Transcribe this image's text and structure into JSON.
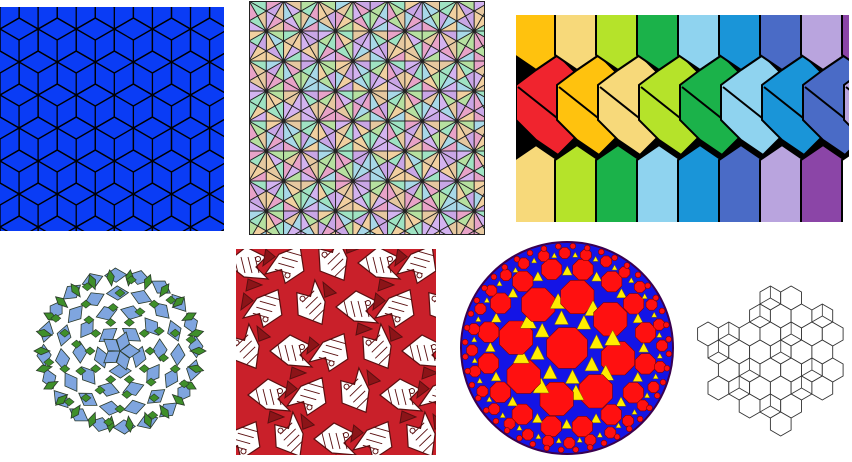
{
  "panels": [
    {
      "id": "p1",
      "name": "blue-rhombille-tiling",
      "colors": {
        "fill": "#0a3cf5",
        "stroke": "#000000"
      }
    },
    {
      "id": "p2",
      "name": "pastel-rhombus-star-tiling",
      "colors": {
        "palette": [
          "#e8a3c8",
          "#b6e0a0",
          "#a8d8e8",
          "#c9a6e6",
          "#f1d0a0",
          "#9fe3c3",
          "#d3b3f0",
          "#e6c8a0"
        ],
        "stroke": "#222222"
      }
    },
    {
      "id": "p3",
      "name": "rainbow-hexagon-strip-tiling",
      "colors": {
        "columns": [
          "#f0242e",
          "#ffc20e",
          "#f7d97a",
          "#b5e32a",
          "#1bb24a",
          "#8fd3ef",
          "#1a95d8",
          "#4a6bc6",
          "#b9a4de",
          "#8b45a7",
          "#ffffff",
          "#7c7c7c",
          "#f3a7c5"
        ],
        "stroke": "#000000"
      }
    },
    {
      "id": "p4",
      "name": "penrose-tiling-rosette",
      "colors": {
        "kite": "#7fa5df",
        "dart": "#3f8f2a",
        "stroke": "#2a3a2a"
      }
    },
    {
      "id": "p5",
      "name": "escher-fish-tessellation",
      "colors": {
        "red": "#c9202a",
        "white": "#ffffff",
        "dark": "#5a0f10"
      }
    },
    {
      "id": "p6",
      "name": "hyperbolic-disk-tiling",
      "colors": {
        "octagon": "#ff1010",
        "blue": "#1414e6",
        "yellow": "#ffee00"
      }
    },
    {
      "id": "p7",
      "name": "hexagon-outline-tiling",
      "colors": {
        "stroke": "#333333",
        "fill": "#ffffff"
      }
    }
  ]
}
